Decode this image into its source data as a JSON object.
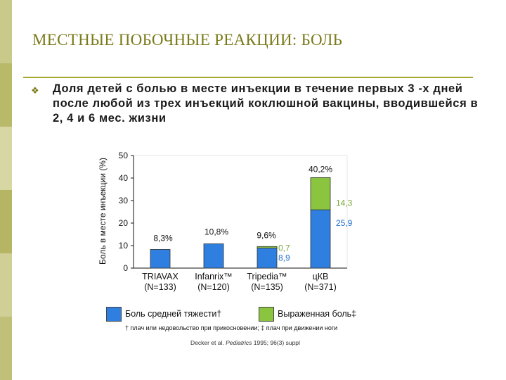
{
  "colors": {
    "sidebar": [
      "#c9c98a",
      "#b9b96a",
      "#d7d7a4",
      "#b5b563",
      "#cfcf96",
      "#c0c078"
    ],
    "title": "#7a7a1a",
    "rule": "#a8a830",
    "moderate": "#2f7fe0",
    "severe": "#8bc53f",
    "label_green": "#7aa83a",
    "label_blue": "#1f6fcf"
  },
  "slide": {
    "title": "МЕСТНЫЕ ПОБОЧНЫЕ РЕАКЦИИ: БОЛЬ",
    "bullet_icon": "diamond-bullet-icon",
    "bullet_text": "Доля детей с болью в месте инъекции в течение первых 3 -х дней после любой из трех инъекций коклюшной вакцины, вводившейся в  2, 4 и 6 мес. жизни",
    "footnote": "† плач или недовольство при прикосновении; ‡ плач при движении ноги",
    "source_prefix": "Decker et al. ",
    "source_journal": "Pediatrics",
    "source_suffix": " 1995; 96(3) suppl"
  },
  "chart_data": {
    "type": "bar",
    "stacked": true,
    "ylabel": "Боль в месте инъекции (%)",
    "ylim": [
      0,
      50
    ],
    "yticks": [
      0,
      10,
      20,
      30,
      40,
      50
    ],
    "categories": [
      "TRIAVAX",
      "Infanrix™",
      "Tripedia™",
      "цКВ"
    ],
    "category_sublabels": [
      "(N=133)",
      "(N=120)",
      "(N=135)",
      "(N=371)"
    ],
    "series": [
      {
        "name": "Боль средней тяжести†",
        "values": [
          8.3,
          10.8,
          8.9,
          25.9
        ]
      },
      {
        "name": "Выраженная боль‡",
        "values": [
          0,
          0,
          0.7,
          14.3
        ]
      }
    ],
    "total_labels": [
      "8,3%",
      "10,8%",
      "9,6%",
      "40,2%"
    ],
    "segment_labels": {
      "severe_tripedia": "0,7",
      "moderate_tripedia": "8,9",
      "severe_wcv": "14,3",
      "moderate_wcv": "25,9"
    },
    "grid": false,
    "legend_position": "bottom"
  }
}
